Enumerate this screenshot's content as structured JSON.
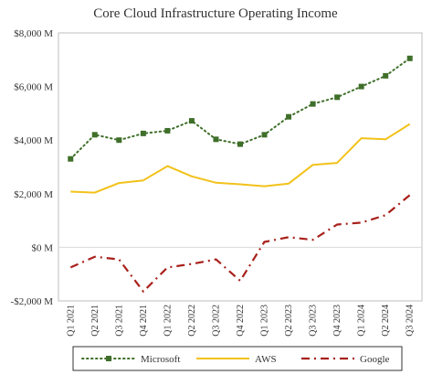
{
  "chart_data": {
    "type": "line",
    "title": "Core Cloud Infrastructure Operating Income",
    "xlabel": "",
    "ylabel": "",
    "categories": [
      "Q1 2021",
      "Q2 2021",
      "Q3 2021",
      "Q4 2021",
      "Q1 2022",
      "Q2 2022",
      "Q3 2022",
      "Q4 2022",
      "Q1 2023",
      "Q2 2023",
      "Q3 2023",
      "Q4 2023",
      "Q1 2024",
      "Q2 2024",
      "Q3 2024"
    ],
    "ylim": [
      -2000,
      8000
    ],
    "yticks": [
      -2000,
      0,
      2000,
      4000,
      6000,
      8000
    ],
    "ytick_labels": [
      "-$2,000 M",
      "$0 M",
      "$2,000 M",
      "$4,000 M",
      "$6,000 M",
      "$8,000 M"
    ],
    "grid": false,
    "legend_position": "bottom",
    "series": [
      {
        "name": "Microsoft",
        "color": "#3f6f2a",
        "style": "dotted-square-markers",
        "values": [
          3300,
          4200,
          4000,
          4250,
          4350,
          4720,
          4030,
          3850,
          4200,
          4870,
          5350,
          5600,
          6000,
          6400,
          7050
        ]
      },
      {
        "name": "AWS",
        "color": "#f2c21a",
        "style": "solid",
        "values": [
          2080,
          2040,
          2400,
          2500,
          3030,
          2650,
          2410,
          2350,
          2280,
          2380,
          3080,
          3150,
          4070,
          4030,
          4600
        ]
      },
      {
        "name": "Google",
        "color": "#a8201a",
        "style": "dash-dot",
        "values": [
          -750,
          -350,
          -450,
          -1650,
          -750,
          -620,
          -450,
          -1250,
          200,
          380,
          280,
          850,
          920,
          1200,
          1950
        ]
      }
    ]
  }
}
